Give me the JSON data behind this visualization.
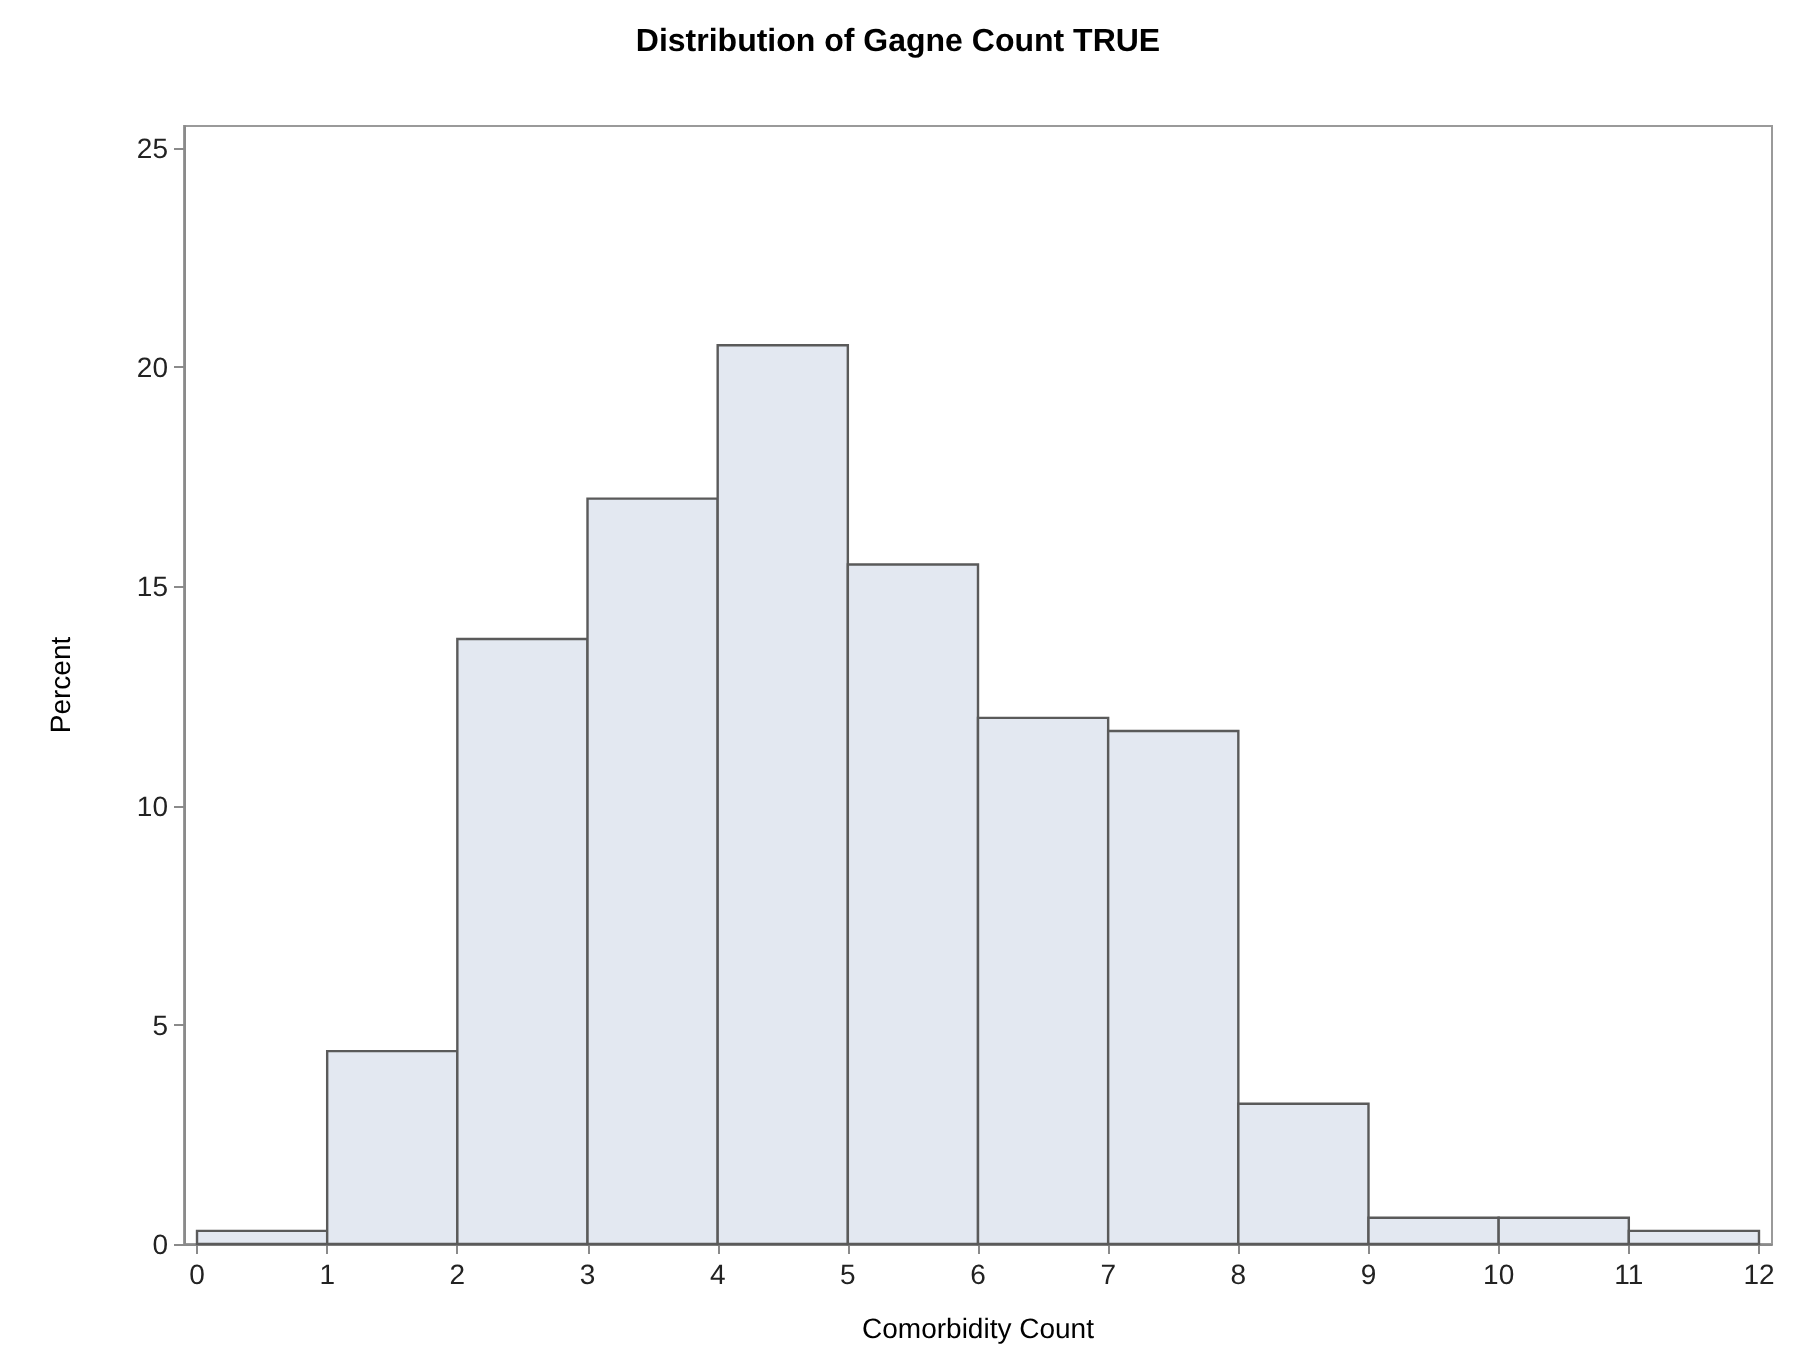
{
  "chart_data": {
    "type": "histogram",
    "title": "Distribution of Gagne Count TRUE",
    "xlabel": "Comorbidity Count",
    "ylabel": "Percent",
    "bins": [
      0,
      1,
      2,
      3,
      4,
      5,
      6,
      7,
      8,
      9,
      10,
      11,
      12
    ],
    "values": [
      0.3,
      4.4,
      13.8,
      17.0,
      20.5,
      15.5,
      12.0,
      11.7,
      3.2,
      0.6,
      0.6,
      0.3
    ],
    "color": "#e3e8f1",
    "xlim": [
      -0.1,
      12.1
    ],
    "xticks": [
      0,
      1,
      2,
      3,
      4,
      5,
      6,
      7,
      8,
      9,
      10,
      11,
      12
    ],
    "ylim": [
      0,
      25.5
    ],
    "yticks": [
      0,
      5,
      10,
      15,
      20,
      25
    ]
  }
}
